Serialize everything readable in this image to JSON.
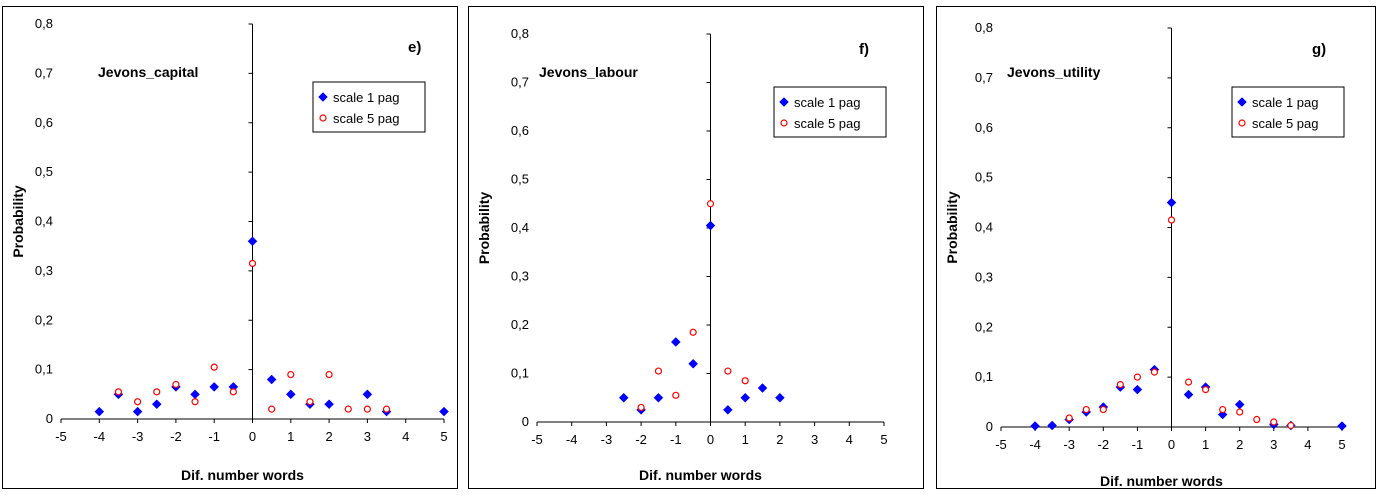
{
  "chart_data": [
    {
      "type": "scatter",
      "panel_label": "e)",
      "annotation": "Jevons_capital",
      "xlabel": "Dif. number words",
      "ylabel": "Probability",
      "xlim": [
        -5,
        5
      ],
      "ylim": [
        0,
        0.8
      ],
      "xticks": [
        "-5",
        "-4",
        "-3",
        "-2",
        "-1",
        "0",
        "1",
        "2",
        "3",
        "4",
        "5"
      ],
      "yticks": [
        "0",
        "0,1",
        "0,2",
        "0,3",
        "0,4",
        "0,5",
        "0,6",
        "0,7",
        "0,8"
      ],
      "grid": false,
      "legend_position": "top-right",
      "series": [
        {
          "name": "scale 1 pag",
          "marker": "diamond",
          "color": "#0000ff",
          "x": [
            -4,
            -3.5,
            -3,
            -2.5,
            -2,
            -1.5,
            -1,
            -0.5,
            0,
            0.5,
            1,
            1.5,
            2,
            3,
            3.5,
            5
          ],
          "y": [
            0.015,
            0.05,
            0.015,
            0.03,
            0.065,
            0.05,
            0.065,
            0.065,
            0.36,
            0.08,
            0.05,
            0.03,
            0.03,
            0.05,
            0.015,
            0.015
          ]
        },
        {
          "name": "scale 5 pag",
          "marker": "circle",
          "color": "#ff0000",
          "x": [
            -3.5,
            -3,
            -2.5,
            -2,
            -1.5,
            -1,
            -0.5,
            0,
            0.5,
            1,
            1.5,
            2,
            2.5,
            3,
            3.5
          ],
          "y": [
            0.055,
            0.035,
            0.055,
            0.07,
            0.035,
            0.105,
            0.055,
            0.315,
            0.02,
            0.09,
            0.035,
            0.09,
            0.02,
            0.02,
            0.02
          ]
        }
      ]
    },
    {
      "type": "scatter",
      "panel_label": "f)",
      "annotation": "Jevons_labour",
      "xlabel": "Dif. number words",
      "ylabel": "Probability",
      "xlim": [
        -5,
        5
      ],
      "ylim": [
        0,
        0.8
      ],
      "xticks": [
        "-5",
        "-4",
        "-3",
        "-2",
        "-1",
        "0",
        "1",
        "2",
        "3",
        "4",
        "5"
      ],
      "yticks": [
        "0",
        "0,1",
        "0,2",
        "0,3",
        "0,4",
        "0,5",
        "0,6",
        "0,7",
        "0,8"
      ],
      "grid": false,
      "legend_position": "top-right",
      "series": [
        {
          "name": "scale 1 pag",
          "marker": "diamond",
          "color": "#0000ff",
          "x": [
            -2.5,
            -2,
            -1.5,
            -1,
            -0.5,
            0,
            0.5,
            1,
            1.5,
            2
          ],
          "y": [
            0.05,
            0.025,
            0.05,
            0.165,
            0.12,
            0.405,
            0.025,
            0.05,
            0.07,
            0.05
          ]
        },
        {
          "name": "scale 5 pag",
          "marker": "circle",
          "color": "#ff0000",
          "x": [
            -2,
            -1.5,
            -1,
            -0.5,
            0,
            0.5,
            1
          ],
          "y": [
            0.03,
            0.105,
            0.055,
            0.185,
            0.45,
            0.105,
            0.085
          ]
        }
      ]
    },
    {
      "type": "scatter",
      "panel_label": "g)",
      "annotation": "Jevons_utility",
      "xlabel": "Dif. number words",
      "ylabel": "Probability",
      "xlim": [
        -5,
        5
      ],
      "ylim": [
        0,
        0.8
      ],
      "xticks": [
        "-5",
        "-4",
        "-3",
        "-2",
        "-1",
        "0",
        "1",
        "2",
        "3",
        "4",
        "5"
      ],
      "yticks": [
        "0",
        "0,1",
        "0,2",
        "0,3",
        "0,4",
        "0,5",
        "0,6",
        "0,7",
        "0,8"
      ],
      "grid": false,
      "legend_position": "top-right",
      "series": [
        {
          "name": "scale 1 pag",
          "marker": "diamond",
          "color": "#0000ff",
          "x": [
            -4,
            -3.5,
            -3,
            -2.5,
            -2,
            -1.5,
            -1,
            -0.5,
            0,
            0.5,
            1,
            1.5,
            2,
            3,
            3.5,
            5
          ],
          "y": [
            0.002,
            0.003,
            0.015,
            0.03,
            0.04,
            0.08,
            0.075,
            0.115,
            0.45,
            0.065,
            0.08,
            0.025,
            0.045,
            0.005,
            0.003,
            0.002
          ]
        },
        {
          "name": "scale 5 pag",
          "marker": "circle",
          "color": "#ff0000",
          "x": [
            -3,
            -2.5,
            -2,
            -1.5,
            -1,
            -0.5,
            0,
            0.5,
            1,
            1.5,
            2,
            2.5,
            3,
            3.5
          ],
          "y": [
            0.018,
            0.035,
            0.035,
            0.085,
            0.1,
            0.11,
            0.415,
            0.09,
            0.075,
            0.035,
            0.03,
            0.015,
            0.01,
            0.003
          ]
        }
      ]
    }
  ]
}
